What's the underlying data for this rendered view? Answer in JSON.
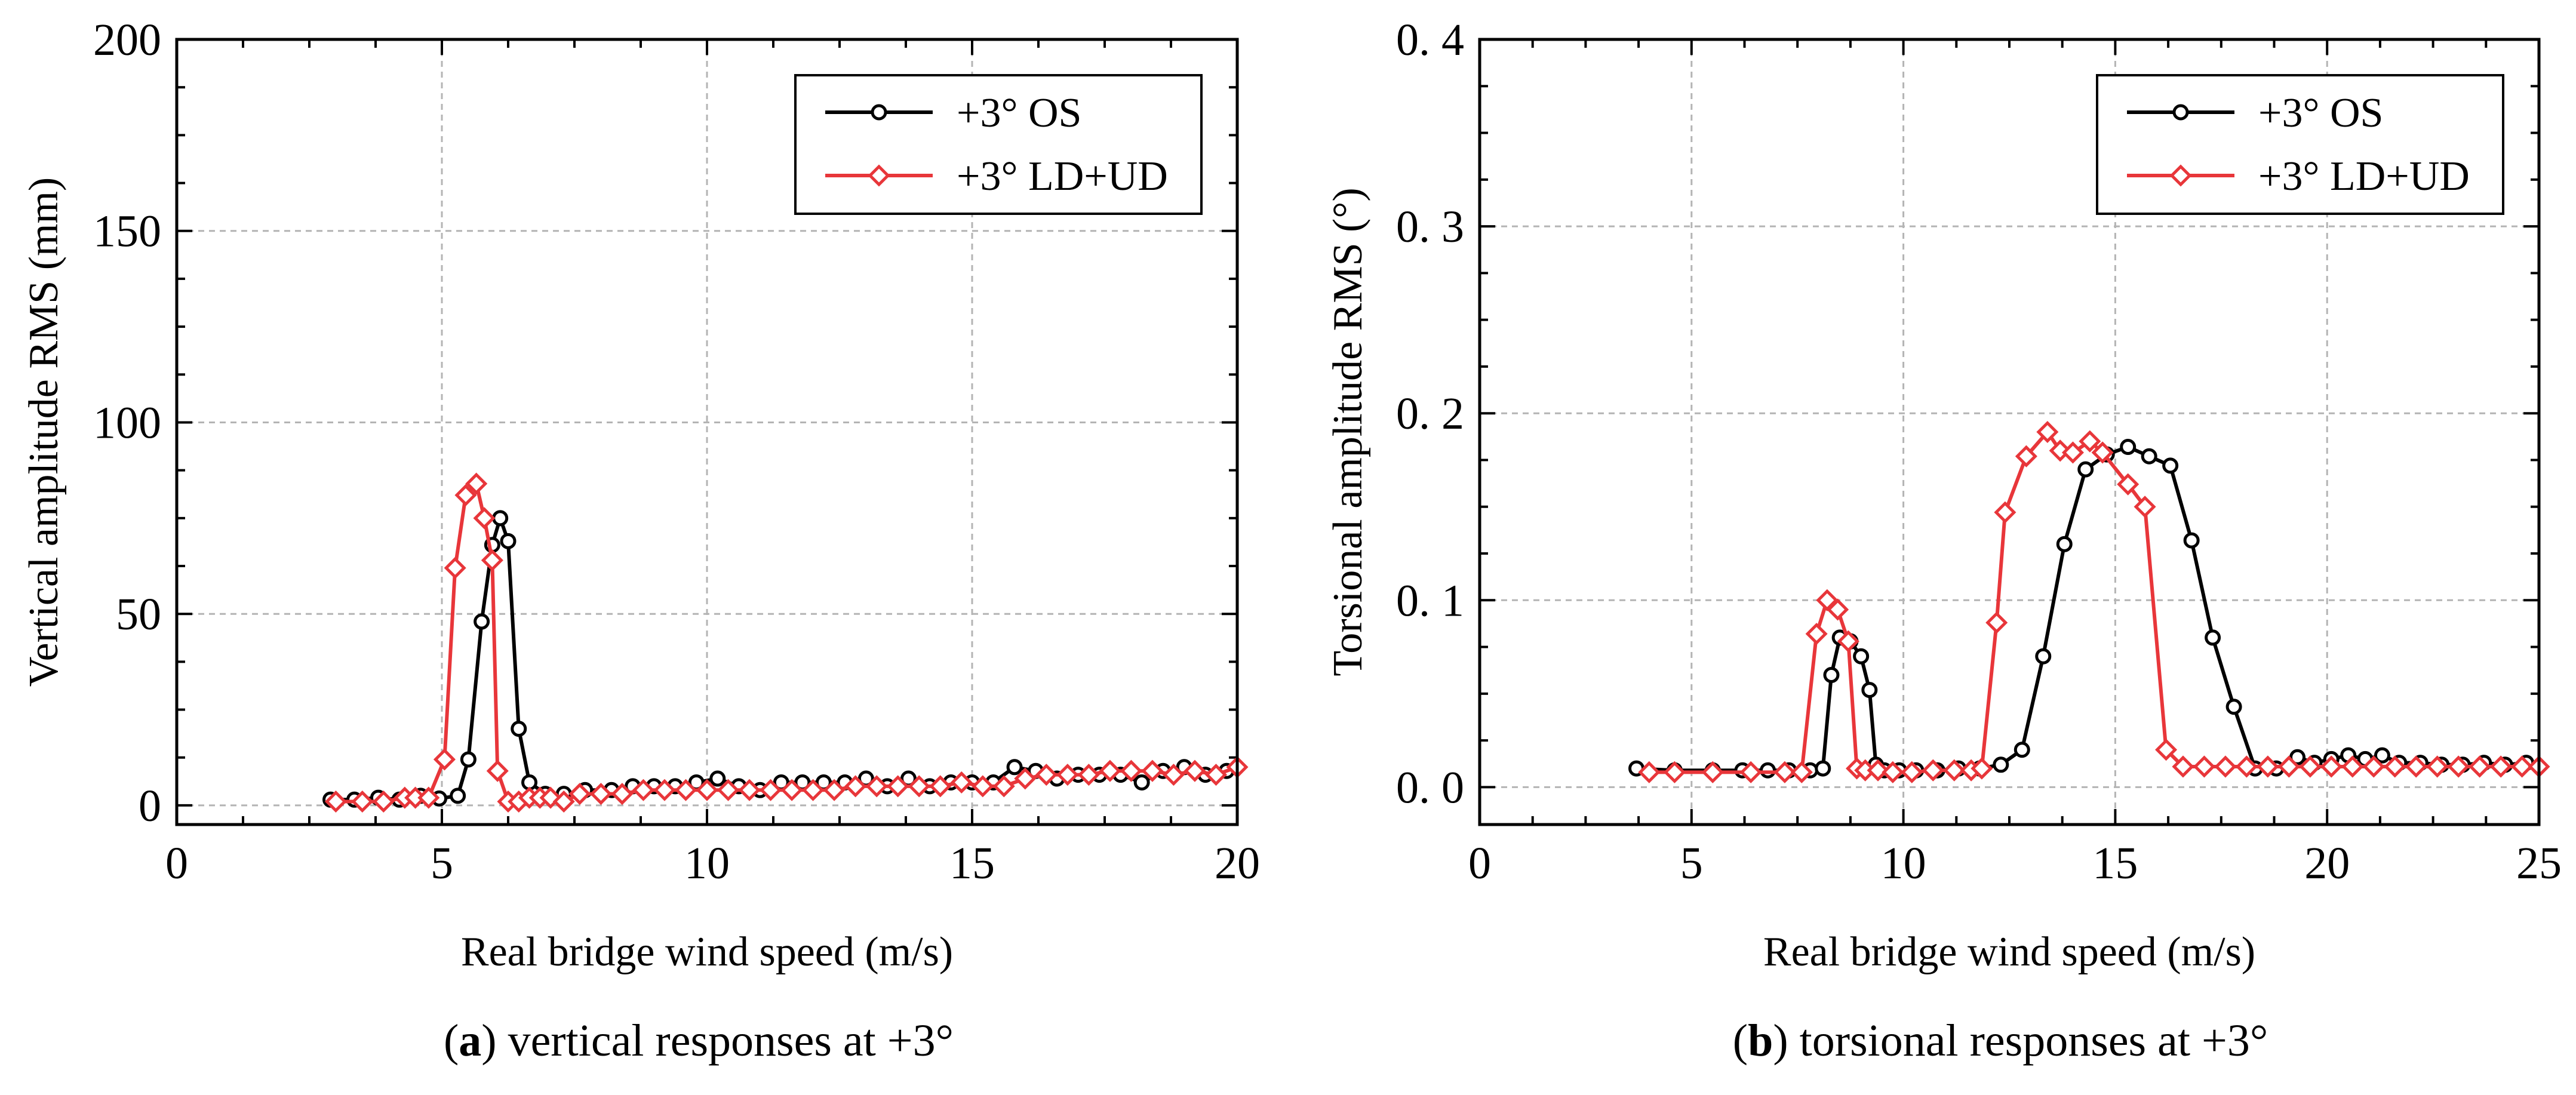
{
  "figure": {
    "captions": [
      {
        "label": "a",
        "text": "vertical responses at +3°"
      },
      {
        "label": "b",
        "text": "torsional responses at +3°"
      }
    ]
  },
  "colors": {
    "os": "#000000",
    "ldud": "#e8363a",
    "grid": "#b4b4b4"
  },
  "chart_data": [
    {
      "type": "line",
      "title": "",
      "xlabel": "Real bridge wind speed (m/s)",
      "ylabel": "Vertical amplitude RMS (mm)",
      "xlim": [
        0,
        20
      ],
      "ylim": [
        -5,
        200
      ],
      "xticks": [
        0,
        5,
        10,
        15,
        20
      ],
      "xtick_labels": [
        "0",
        "5",
        "10",
        "15",
        "20"
      ],
      "yticks": [
        0,
        50,
        100,
        150,
        200
      ],
      "ytick_labels": [
        "0",
        "50",
        "100",
        "150",
        "200"
      ],
      "grid": true,
      "legend_position": "top-right",
      "series": [
        {
          "name": "+3° OS",
          "color": "#000000",
          "marker": "circle",
          "x": [
            2.9,
            3.35,
            3.8,
            4.2,
            4.6,
            4.95,
            5.3,
            5.5,
            5.75,
            5.95,
            6.1,
            6.25,
            6.45,
            6.65,
            6.95,
            7.3,
            7.7,
            8.2,
            8.6,
            9.0,
            9.4,
            9.8,
            10.2,
            10.6,
            11.0,
            11.4,
            11.8,
            12.2,
            12.6,
            13.0,
            13.4,
            13.8,
            14.2,
            14.6,
            15.0,
            15.4,
            15.8,
            16.2,
            16.6,
            17.0,
            17.4,
            17.8,
            18.2,
            18.6,
            19.0,
            19.4,
            19.8
          ],
          "y": [
            1.5,
            1.5,
            2.0,
            1.5,
            2.5,
            1.8,
            2.5,
            12,
            48,
            68,
            75,
            69,
            20,
            6,
            3,
            3,
            4,
            4,
            5,
            5,
            5,
            6,
            7,
            5,
            4,
            6,
            6,
            6,
            6,
            7,
            5,
            7,
            5,
            6,
            6,
            6,
            10,
            9,
            7,
            8,
            8,
            8,
            6,
            9,
            10,
            8,
            9
          ]
        },
        {
          "name": "+3° LD+UD",
          "color": "#e8363a",
          "marker": "diamond",
          "x": [
            3.0,
            3.5,
            3.9,
            4.3,
            4.5,
            4.75,
            5.05,
            5.25,
            5.45,
            5.65,
            5.8,
            5.95,
            6.05,
            6.25,
            6.45,
            6.65,
            6.85,
            7.05,
            7.3,
            7.6,
            8.0,
            8.4,
            8.8,
            9.2,
            9.6,
            10.0,
            10.4,
            10.8,
            11.2,
            11.6,
            12.0,
            12.4,
            12.8,
            13.2,
            13.6,
            14.0,
            14.4,
            14.8,
            15.2,
            15.6,
            16.0,
            16.4,
            16.8,
            17.2,
            17.6,
            18.0,
            18.4,
            18.8,
            19.2,
            19.6,
            20.0
          ],
          "y": [
            1,
            1,
            1,
            2,
            2,
            2,
            12,
            62,
            81,
            84,
            75,
            64,
            9,
            1,
            1,
            2,
            2,
            2,
            1,
            3,
            3,
            3,
            4,
            4,
            4,
            4,
            4,
            4,
            4,
            4,
            4,
            4,
            5,
            5,
            5,
            5,
            5,
            6,
            5,
            5,
            7,
            8,
            8,
            8,
            9,
            9,
            9,
            8,
            9,
            8,
            10
          ]
        }
      ]
    },
    {
      "type": "line",
      "title": "",
      "xlabel": "Real bridge wind speed (m/s)",
      "ylabel": "Torsional amplitude RMS (°)",
      "xlim": [
        0,
        25
      ],
      "ylim": [
        -0.02,
        0.4
      ],
      "xticks": [
        0,
        5,
        10,
        15,
        20,
        25
      ],
      "xtick_labels": [
        "0",
        "5",
        "10",
        "15",
        "20",
        "25"
      ],
      "yticks": [
        0.0,
        0.1,
        0.2,
        0.3,
        0.4
      ],
      "ytick_labels": [
        "0. 0",
        "0. 1",
        "0. 2",
        "0. 3",
        "0. 4"
      ],
      "grid": true,
      "legend_position": "top-right",
      "series": [
        {
          "name": "+3° OS",
          "color": "#000000",
          "marker": "circle",
          "x": [
            3.7,
            4.6,
            5.5,
            6.2,
            6.8,
            7.3,
            7.8,
            8.1,
            8.3,
            8.5,
            8.75,
            9.0,
            9.2,
            9.35,
            9.55,
            9.9,
            10.3,
            10.8,
            11.3,
            11.8,
            12.3,
            12.8,
            13.3,
            13.8,
            14.3,
            14.8,
            15.3,
            15.8,
            16.3,
            16.8,
            17.3,
            17.8,
            18.3,
            18.8,
            19.3,
            19.7,
            20.1,
            20.5,
            20.9,
            21.3,
            21.7,
            22.2,
            22.7,
            23.2,
            23.7,
            24.2,
            24.7
          ],
          "y": [
            0.01,
            0.009,
            0.009,
            0.009,
            0.009,
            0.009,
            0.009,
            0.01,
            0.06,
            0.08,
            0.078,
            0.07,
            0.052,
            0.012,
            0.009,
            0.009,
            0.009,
            0.009,
            0.01,
            0.01,
            0.012,
            0.02,
            0.07,
            0.13,
            0.17,
            0.178,
            0.182,
            0.177,
            0.172,
            0.132,
            0.08,
            0.043,
            0.01,
            0.01,
            0.016,
            0.013,
            0.015,
            0.017,
            0.015,
            0.017,
            0.013,
            0.013,
            0.012,
            0.012,
            0.013,
            0.012,
            0.013
          ]
        },
        {
          "name": "+3° LD+UD",
          "color": "#e8363a",
          "marker": "diamond",
          "x": [
            4.0,
            4.6,
            5.5,
            6.4,
            7.2,
            7.6,
            7.95,
            8.2,
            8.45,
            8.7,
            8.9,
            9.1,
            9.4,
            9.75,
            10.2,
            10.7,
            11.2,
            11.6,
            11.85,
            12.2,
            12.4,
            12.9,
            13.4,
            13.7,
            14.0,
            14.4,
            14.7,
            15.3,
            15.7,
            16.2,
            16.6,
            17.1,
            17.6,
            18.1,
            18.6,
            19.1,
            19.6,
            20.1,
            20.6,
            21.1,
            21.6,
            22.1,
            22.6,
            23.1,
            23.6,
            24.1,
            24.6,
            25.0
          ],
          "y": [
            0.008,
            0.008,
            0.008,
            0.008,
            0.008,
            0.008,
            0.082,
            0.1,
            0.095,
            0.078,
            0.01,
            0.009,
            0.009,
            0.008,
            0.008,
            0.009,
            0.009,
            0.009,
            0.01,
            0.088,
            0.147,
            0.177,
            0.19,
            0.18,
            0.179,
            0.185,
            0.179,
            0.162,
            0.15,
            0.02,
            0.011,
            0.011,
            0.011,
            0.011,
            0.011,
            0.011,
            0.011,
            0.011,
            0.011,
            0.011,
            0.011,
            0.011,
            0.011,
            0.011,
            0.011,
            0.011,
            0.011,
            0.011
          ]
        }
      ]
    }
  ]
}
